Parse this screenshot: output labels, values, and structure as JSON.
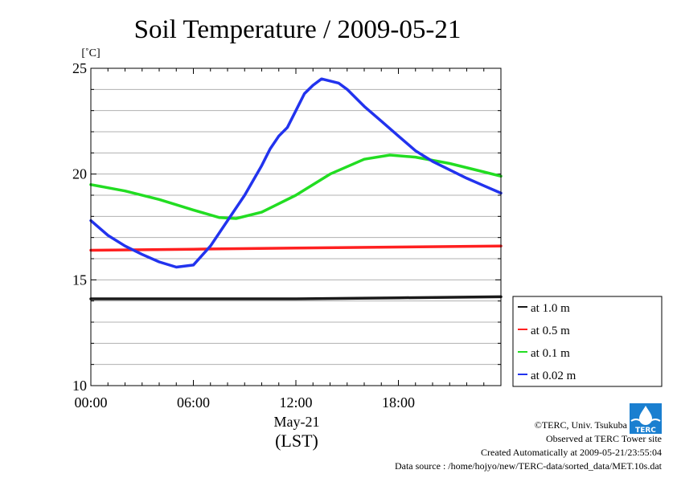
{
  "chart_data": {
    "type": "line",
    "title": "Soil Temperature / 2009-05-21",
    "ylabel": "[˚C]",
    "xlabel_date": "May-21",
    "xlabel_tz": "(LST)",
    "ylim": [
      10,
      25
    ],
    "yticks": [
      10,
      15,
      20,
      25
    ],
    "xlim_hours": [
      0,
      24
    ],
    "xticks": [
      {
        "hour": 0,
        "label": "00:00"
      },
      {
        "hour": 6,
        "label": "06:00"
      },
      {
        "hour": 12,
        "label": "12:00"
      },
      {
        "hour": 18,
        "label": "18:00"
      }
    ],
    "grid": true,
    "legend_position": "bottom-right, outside plot",
    "series": [
      {
        "name": "at 1.0 m",
        "color": "#1a1a1a",
        "points": [
          [
            0,
            14.1
          ],
          [
            6,
            14.1
          ],
          [
            12,
            14.1
          ],
          [
            18,
            14.15
          ],
          [
            24,
            14.2
          ]
        ]
      },
      {
        "name": "at 0.5 m",
        "color": "#ff2020",
        "points": [
          [
            0,
            16.4
          ],
          [
            6,
            16.45
          ],
          [
            12,
            16.5
          ],
          [
            18,
            16.55
          ],
          [
            24,
            16.6
          ]
        ]
      },
      {
        "name": "at 0.1 m",
        "color": "#22dd22",
        "points": [
          [
            0,
            19.5
          ],
          [
            2,
            19.2
          ],
          [
            4,
            18.8
          ],
          [
            6,
            18.3
          ],
          [
            7.5,
            17.95
          ],
          [
            8.5,
            17.9
          ],
          [
            10,
            18.2
          ],
          [
            12,
            19.0
          ],
          [
            14,
            20.0
          ],
          [
            16,
            20.7
          ],
          [
            17.5,
            20.9
          ],
          [
            19,
            20.8
          ],
          [
            21,
            20.5
          ],
          [
            23,
            20.1
          ],
          [
            24,
            19.9
          ]
        ]
      },
      {
        "name": "at 0.02 m",
        "color": "#2233ee",
        "points": [
          [
            0,
            17.8
          ],
          [
            1,
            17.1
          ],
          [
            2,
            16.6
          ],
          [
            3,
            16.2
          ],
          [
            4,
            15.85
          ],
          [
            5,
            15.6
          ],
          [
            6,
            15.7
          ],
          [
            7,
            16.6
          ],
          [
            8,
            17.8
          ],
          [
            9,
            19.0
          ],
          [
            10,
            20.4
          ],
          [
            10.5,
            21.2
          ],
          [
            11,
            21.8
          ],
          [
            11.5,
            22.2
          ],
          [
            12,
            23.0
          ],
          [
            12.5,
            23.8
          ],
          [
            13,
            24.2
          ],
          [
            13.5,
            24.5
          ],
          [
            14,
            24.4
          ],
          [
            14.5,
            24.3
          ],
          [
            15,
            24.0
          ],
          [
            16,
            23.2
          ],
          [
            17,
            22.5
          ],
          [
            18,
            21.8
          ],
          [
            19,
            21.1
          ],
          [
            20,
            20.6
          ],
          [
            21,
            20.2
          ],
          [
            22,
            19.8
          ],
          [
            23,
            19.45
          ],
          [
            24,
            19.1
          ]
        ]
      }
    ]
  },
  "credits": {
    "copyright": "©TERC, Univ. Tsukuba",
    "observed": "Observed at TERC Tower site",
    "created": "Created Automatically at 2009-05-21/23:55:04",
    "source": "Data source : /home/hojyo/new/TERC-data/sorted_data/MET.10s.dat"
  },
  "logo": {
    "text": "TERC",
    "color": "#1a7fd0"
  }
}
